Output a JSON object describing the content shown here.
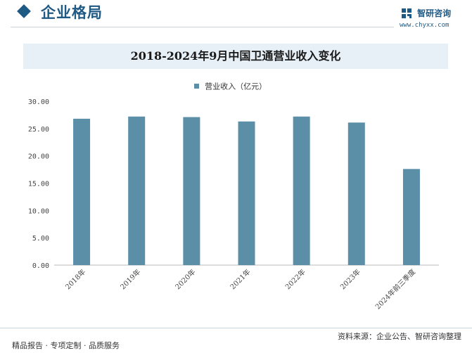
{
  "header": {
    "section_title": "企业格局",
    "brand_name": "智研咨询",
    "brand_url": "www.chyxx.com"
  },
  "colors": {
    "accent": "#1f5a85",
    "bar": "#5b8fa8",
    "title_band": "#e7f0f7"
  },
  "icons": {
    "section_marker": "diamond-icon",
    "brand_logo": "chyxx-logo-icon"
  },
  "footer": {
    "left_text": "精品报告 · 专项定制 · 品质服务",
    "source_text": "资料来源：企业公告、智研咨询整理"
  },
  "chart_data": {
    "type": "bar",
    "title": "2018-2024年9月中国卫通营业收入变化",
    "categories": [
      "2018年",
      "2019年",
      "2020年",
      "2021年",
      "2022年",
      "2023年",
      "2024年前三季度"
    ],
    "series": [
      {
        "name": "营业收入（亿元）",
        "values": [
          26.8,
          27.2,
          27.1,
          26.3,
          27.2,
          26.1,
          17.6
        ]
      }
    ],
    "y_ticks": [
      "0.00",
      "5.00",
      "10.00",
      "15.00",
      "20.00",
      "25.00",
      "30.00"
    ],
    "ylim": [
      0,
      30
    ],
    "grid": false,
    "legend_position": "top-center"
  }
}
